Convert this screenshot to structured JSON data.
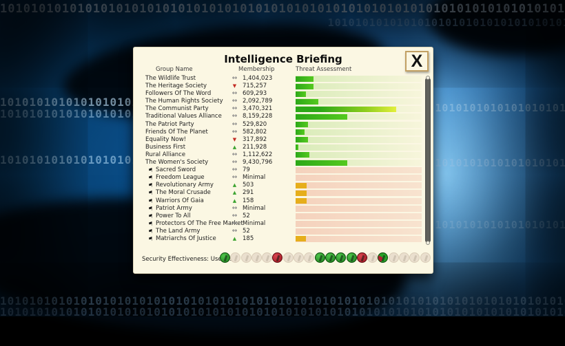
{
  "window": {
    "title": "Intelligence Briefing",
    "close_label": "X"
  },
  "columns": {
    "group": "Group Name",
    "membership": "Membership",
    "threat": "Threat Assessment"
  },
  "trend_symbols": {
    "level": "↔",
    "down": "▼",
    "up": "▲"
  },
  "flag_symbol": "⚑",
  "rows": [
    {
      "name": "The Wildlife Trust",
      "radical": false,
      "trend": "level",
      "membership": "1,404,023",
      "threat_pct": 14,
      "bar": "green"
    },
    {
      "name": "The Heritage Society",
      "radical": false,
      "trend": "down",
      "membership": "715,257",
      "threat_pct": 14,
      "bar": "green"
    },
    {
      "name": "Followers Of The Word",
      "radical": false,
      "trend": "level",
      "membership": "609,293",
      "threat_pct": 8,
      "bar": "green"
    },
    {
      "name": "The Human Rights Society",
      "radical": false,
      "trend": "level",
      "membership": "2,092,789",
      "threat_pct": 18,
      "bar": "green"
    },
    {
      "name": "The Communist Party",
      "radical": false,
      "trend": "level",
      "membership": "3,470,321",
      "threat_pct": 80,
      "bar": "green-yellow"
    },
    {
      "name": "Traditional Values Alliance",
      "radical": false,
      "trend": "level",
      "membership": "8,159,228",
      "threat_pct": 41,
      "bar": "green"
    },
    {
      "name": "The Patriot Party",
      "radical": false,
      "trend": "level",
      "membership": "529,820",
      "threat_pct": 10,
      "bar": "green"
    },
    {
      "name": "Friends Of The Planet",
      "radical": false,
      "trend": "level",
      "membership": "582,802",
      "threat_pct": 7,
      "bar": "green"
    },
    {
      "name": "Equality Now!",
      "radical": false,
      "trend": "down",
      "membership": "317,892",
      "threat_pct": 10,
      "bar": "green"
    },
    {
      "name": "Business First",
      "radical": false,
      "trend": "up",
      "membership": "211,928",
      "threat_pct": 2,
      "bar": "green"
    },
    {
      "name": "Rural Alliance",
      "radical": false,
      "trend": "level",
      "membership": "1,112,622",
      "threat_pct": 11,
      "bar": "green"
    },
    {
      "name": "The Women's Society",
      "radical": false,
      "trend": "level",
      "membership": "9,430,796",
      "threat_pct": 41,
      "bar": "green"
    },
    {
      "name": "Sacred Sword",
      "radical": true,
      "trend": "level",
      "membership": "79",
      "threat_pct": 0,
      "bar": "none"
    },
    {
      "name": "Freedom League",
      "radical": true,
      "trend": "level",
      "membership": "Minimal",
      "threat_pct": 0,
      "bar": "none"
    },
    {
      "name": "Revolutionary Army",
      "radical": true,
      "trend": "up",
      "membership": "503",
      "threat_pct": 9,
      "bar": "orange"
    },
    {
      "name": "The Moral Crusade",
      "radical": true,
      "trend": "up",
      "membership": "291",
      "threat_pct": 9,
      "bar": "orange"
    },
    {
      "name": "Warriors Of Gaia",
      "radical": true,
      "trend": "up",
      "membership": "158",
      "threat_pct": 9,
      "bar": "orange"
    },
    {
      "name": "Patriot Army",
      "radical": true,
      "trend": "level",
      "membership": "Minimal",
      "threat_pct": 0,
      "bar": "none"
    },
    {
      "name": "Power To All",
      "radical": true,
      "trend": "level",
      "membership": "52",
      "threat_pct": 0,
      "bar": "none"
    },
    {
      "name": "Protectors Of The Free Market",
      "radical": true,
      "trend": "level",
      "membership": "Minimal",
      "threat_pct": 0,
      "bar": "none"
    },
    {
      "name": "The Land Army",
      "radical": true,
      "trend": "level",
      "membership": "52",
      "threat_pct": 0,
      "bar": "none"
    },
    {
      "name": "Matriarchs Of Justice",
      "radical": true,
      "trend": "up",
      "membership": "185",
      "threat_pct": 8,
      "bar": "orange"
    }
  ],
  "footer": {
    "security_label": "Security Effectiveness: Useless",
    "group_icons": [
      "green",
      "faded",
      "faded",
      "faded",
      "faded",
      "red",
      "faded",
      "faded",
      "faded",
      "green",
      "green",
      "green",
      "green",
      "red",
      "faded",
      "mixed",
      "faded",
      "faded",
      "faded",
      "faded"
    ]
  },
  "colors": {
    "panel_bg": "#fbf7e3",
    "bar_green": "#2ca818",
    "bar_green_tip_yellow": "#e3ef3c",
    "bar_orange": "#e6ae1b",
    "trend_up": "#3da431",
    "trend_down": "#c22a22",
    "trend_level": "#8a8a8a",
    "icon_green": "#1c7c1c",
    "icon_red": "#9d1620"
  },
  "background": {
    "binary_pattern": "10"
  }
}
